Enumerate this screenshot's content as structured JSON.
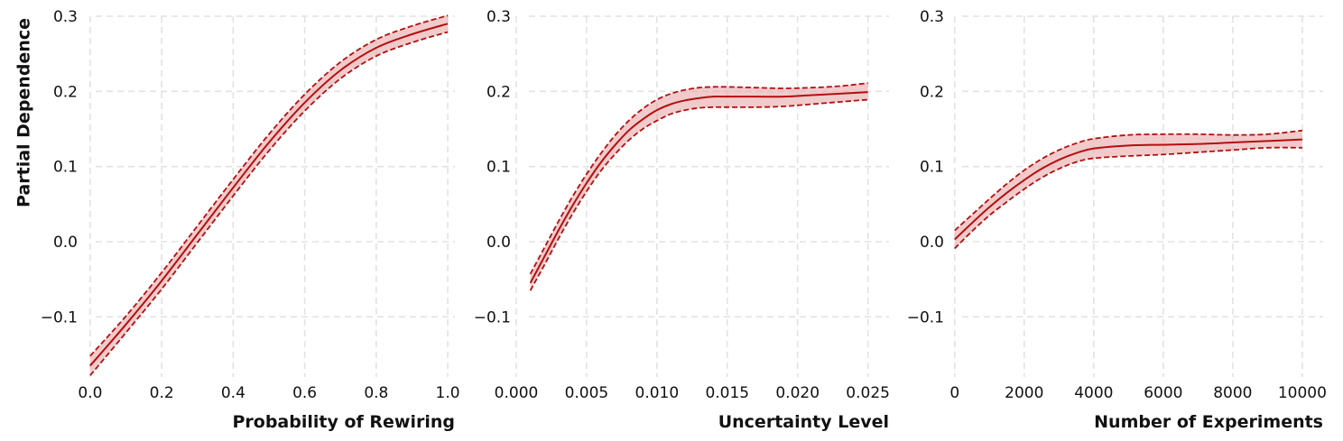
{
  "colors": {
    "line": "#b40f0f",
    "band": "#e8a9a9",
    "grid": "#e2e2e2"
  },
  "chart_data": [
    {
      "type": "line",
      "xlabel": "Probability of Rewiring",
      "ylabel": "Partial Dependence",
      "xlim": [
        -0.02,
        1.02
      ],
      "ylim": [
        -0.18,
        0.3
      ],
      "xticks": [
        0.0,
        0.2,
        0.4,
        0.6,
        0.8,
        1.0
      ],
      "xtick_labels": [
        "0.0",
        "0.2",
        "0.4",
        "0.6",
        "0.8",
        "1.0"
      ],
      "yticks": [
        -0.1,
        0.0,
        0.1,
        0.2,
        0.3
      ],
      "ytick_labels": [
        "−0.1",
        "0.0",
        "0.1",
        "0.2",
        "0.3"
      ],
      "grid": true,
      "x": [
        0.0,
        0.1,
        0.2,
        0.3,
        0.4,
        0.5,
        0.6,
        0.7,
        0.8,
        0.9,
        1.0
      ],
      "series": [
        {
          "role": "mean",
          "values": [
            -0.165,
            -0.11,
            -0.052,
            0.01,
            0.072,
            0.132,
            0.185,
            0.228,
            0.258,
            0.276,
            0.29
          ]
        },
        {
          "role": "upper",
          "values": [
            -0.152,
            -0.099,
            -0.041,
            0.021,
            0.083,
            0.143,
            0.196,
            0.239,
            0.269,
            0.287,
            0.301
          ]
        },
        {
          "role": "lower",
          "values": [
            -0.178,
            -0.121,
            -0.063,
            -0.001,
            0.061,
            0.121,
            0.174,
            0.217,
            0.247,
            0.265,
            0.279
          ]
        }
      ]
    },
    {
      "type": "line",
      "xlabel": "Uncertainty Level",
      "ylabel": "",
      "xlim": [
        0.0,
        0.0265
      ],
      "ylim": [
        -0.18,
        0.3
      ],
      "xticks": [
        0.0,
        0.005,
        0.01,
        0.015,
        0.02,
        0.025
      ],
      "xtick_labels": [
        "0.000",
        "0.005",
        "0.010",
        "0.015",
        "0.020",
        "0.025"
      ],
      "yticks": [
        -0.1,
        0.0,
        0.1,
        0.2,
        0.3
      ],
      "ytick_labels": [
        "−0.1",
        "0.0",
        "0.1",
        "0.2",
        "0.3"
      ],
      "grid": true,
      "x": [
        0.001,
        0.002,
        0.003,
        0.004,
        0.005,
        0.006,
        0.007,
        0.008,
        0.009,
        0.01,
        0.011,
        0.012,
        0.013,
        0.014,
        0.015,
        0.017,
        0.019,
        0.021,
        0.023,
        0.025
      ],
      "series": [
        {
          "role": "mean",
          "values": [
            -0.055,
            -0.02,
            0.015,
            0.048,
            0.078,
            0.105,
            0.128,
            0.148,
            0.163,
            0.175,
            0.183,
            0.188,
            0.191,
            0.193,
            0.193,
            0.193,
            0.193,
            0.195,
            0.197,
            0.199
          ]
        },
        {
          "role": "upper",
          "values": [
            -0.043,
            -0.008,
            0.027,
            0.06,
            0.09,
            0.117,
            0.141,
            0.161,
            0.177,
            0.189,
            0.197,
            0.202,
            0.205,
            0.206,
            0.206,
            0.205,
            0.204,
            0.205,
            0.207,
            0.211
          ]
        },
        {
          "role": "lower",
          "values": [
            -0.065,
            -0.031,
            0.004,
            0.037,
            0.067,
            0.094,
            0.116,
            0.135,
            0.15,
            0.161,
            0.17,
            0.175,
            0.178,
            0.179,
            0.179,
            0.179,
            0.18,
            0.183,
            0.186,
            0.189
          ]
        }
      ]
    },
    {
      "type": "line",
      "xlabel": "Number of Experiments",
      "ylabel": "",
      "xlim": [
        -150,
        10600
      ],
      "ylim": [
        -0.18,
        0.3
      ],
      "xticks": [
        0,
        2000,
        4000,
        6000,
        8000,
        10000
      ],
      "xtick_labels": [
        "0",
        "2000",
        "4000",
        "6000",
        "8000",
        "10000"
      ],
      "yticks": [
        -0.1,
        0.0,
        0.1,
        0.2,
        0.3
      ],
      "ytick_labels": [
        "−0.1",
        "0.0",
        "0.1",
        "0.2",
        "0.3"
      ],
      "grid": true,
      "x": [
        0,
        500,
        1000,
        1500,
        2000,
        2500,
        3000,
        3500,
        4000,
        5000,
        6000,
        7000,
        8000,
        9000,
        10000
      ],
      "series": [
        {
          "role": "mean",
          "values": [
            0.003,
            0.025,
            0.046,
            0.065,
            0.082,
            0.097,
            0.109,
            0.118,
            0.124,
            0.128,
            0.129,
            0.13,
            0.132,
            0.134,
            0.136
          ]
        },
        {
          "role": "upper",
          "values": [
            0.015,
            0.036,
            0.057,
            0.077,
            0.095,
            0.11,
            0.122,
            0.131,
            0.137,
            0.142,
            0.143,
            0.143,
            0.142,
            0.143,
            0.148
          ]
        },
        {
          "role": "lower",
          "values": [
            -0.009,
            0.014,
            0.035,
            0.053,
            0.07,
            0.085,
            0.097,
            0.106,
            0.111,
            0.114,
            0.116,
            0.119,
            0.122,
            0.125,
            0.125
          ]
        }
      ]
    }
  ]
}
